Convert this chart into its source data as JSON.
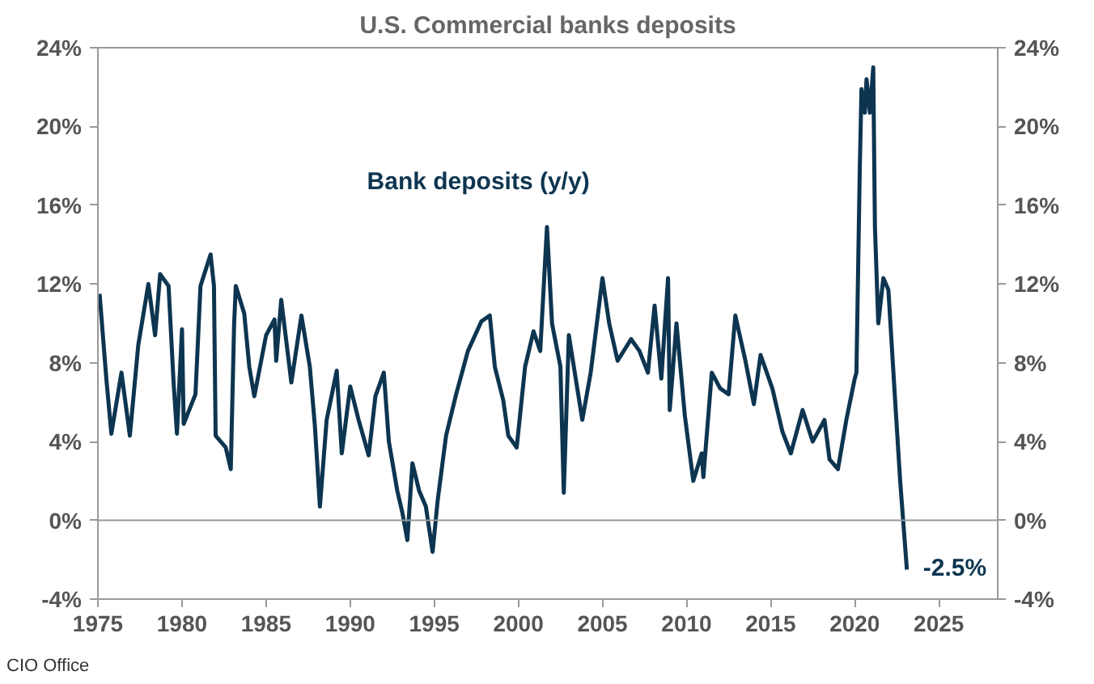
{
  "chart_data": {
    "type": "line",
    "title": "U.S. Commercial banks deposits",
    "legend": false,
    "grid": false,
    "x": [
      1975.1,
      1975.5,
      1975.8,
      1976.4,
      1976.9,
      1977.4,
      1978.0,
      1978.4,
      1978.7,
      1979.2,
      1979.5,
      1979.7,
      1980.0,
      1980.1,
      1980.8,
      1981.1,
      1981.7,
      1981.9,
      1982.0,
      1982.6,
      1982.9,
      1983.1,
      1983.2,
      1983.7,
      1984.0,
      1984.3,
      1985.0,
      1985.5,
      1985.6,
      1985.9,
      1986.5,
      1987.1,
      1987.6,
      1987.9,
      1988.2,
      1988.6,
      1989.2,
      1989.5,
      1990.0,
      1990.5,
      1991.1,
      1991.5,
      1992.0,
      1992.3,
      1992.8,
      1993.1,
      1993.4,
      1993.7,
      1994.1,
      1994.5,
      1994.9,
      1995.2,
      1995.7,
      1996.3,
      1997.0,
      1997.8,
      1998.3,
      1998.6,
      1999.1,
      1999.4,
      1999.9,
      2000.4,
      2000.9,
      2001.3,
      2001.7,
      2002.0,
      2002.5,
      2002.7,
      2003.0,
      2003.8,
      2004.3,
      2005.0,
      2005.4,
      2005.9,
      2006.7,
      2007.2,
      2007.7,
      2008.1,
      2008.5,
      2008.9,
      2009.0,
      2009.4,
      2009.9,
      2010.4,
      2010.9,
      2011.0,
      2011.5,
      2012.0,
      2012.5,
      2012.9,
      2013.5,
      2014.0,
      2014.4,
      2015.1,
      2015.7,
      2016.2,
      2016.9,
      2017.5,
      2018.2,
      2018.5,
      2019.0,
      2019.5,
      2020.0,
      2020.1,
      2020.3,
      2020.4,
      2020.6,
      2020.7,
      2020.9,
      2021.1,
      2021.2,
      2021.4,
      2021.7,
      2022.0,
      2022.4,
      2022.7,
      2023.1
    ],
    "series": [
      {
        "name": "Bank deposits (y/y)",
        "color": "#0d3550",
        "values": [
          11.5,
          7.2,
          4.4,
          7.5,
          4.3,
          8.9,
          12.0,
          9.4,
          12.5,
          11.9,
          7.0,
          4.4,
          9.7,
          4.9,
          6.4,
          11.9,
          13.5,
          11.9,
          4.3,
          3.7,
          2.6,
          10.0,
          11.9,
          10.5,
          7.8,
          6.3,
          9.4,
          10.2,
          8.1,
          11.2,
          7.0,
          10.4,
          7.8,
          4.8,
          0.7,
          5.1,
          7.6,
          3.4,
          6.8,
          5.1,
          3.3,
          6.3,
          7.5,
          4.0,
          1.5,
          0.4,
          -1.0,
          2.9,
          1.5,
          0.7,
          -1.6,
          1.0,
          4.3,
          6.4,
          8.6,
          10.1,
          10.4,
          7.8,
          6.1,
          4.3,
          3.7,
          7.8,
          9.6,
          8.6,
          14.9,
          10.0,
          7.8,
          1.4,
          9.4,
          5.1,
          7.5,
          12.3,
          10.0,
          8.1,
          9.2,
          8.6,
          7.5,
          10.9,
          7.2,
          12.3,
          5.6,
          10.0,
          5.3,
          2.0,
          3.4,
          2.2,
          7.5,
          6.7,
          6.4,
          10.4,
          8.1,
          5.9,
          8.4,
          6.7,
          4.5,
          3.4,
          5.6,
          4.0,
          5.1,
          3.1,
          2.6,
          5.1,
          7.2,
          7.5,
          17.9,
          21.9,
          20.7,
          22.4,
          20.7,
          23.0,
          14.9,
          10.0,
          12.3,
          11.7,
          6.1,
          2.0,
          -2.5
        ]
      }
    ],
    "xlim": [
      1975,
      2028.5
    ],
    "xticks": [
      1975,
      1980,
      1985,
      1990,
      1995,
      2000,
      2005,
      2010,
      2015,
      2020,
      2025
    ],
    "ylim": [
      -4,
      24
    ],
    "yticks": [
      {
        "value": -4,
        "label": "-4%"
      },
      {
        "value": 0,
        "label": "0%"
      },
      {
        "value": 4,
        "label": "4%"
      },
      {
        "value": 8,
        "label": "8%"
      },
      {
        "value": 12,
        "label": "12%"
      },
      {
        "value": 16,
        "label": "16%"
      },
      {
        "value": 20,
        "label": "20%"
      },
      {
        "value": 24,
        "label": "24%"
      }
    ],
    "y2lim": [
      -4,
      24
    ],
    "y2ticks": [
      {
        "value": -4,
        "label": "-4%"
      },
      {
        "value": 0,
        "label": "0%"
      },
      {
        "value": 4,
        "label": "4%"
      },
      {
        "value": 8,
        "label": "8%"
      },
      {
        "value": 12,
        "label": "12%"
      },
      {
        "value": 16,
        "label": "16%"
      },
      {
        "value": 20,
        "label": "20%"
      },
      {
        "value": 24,
        "label": "24%"
      }
    ],
    "ref_lines": [
      {
        "axis": "y",
        "value": 0,
        "color": "#999999"
      }
    ],
    "annotations": [
      {
        "text": "-2.5%",
        "x": 2023.1,
        "y": -2.5
      },
      "CIO Office"
    ]
  }
}
